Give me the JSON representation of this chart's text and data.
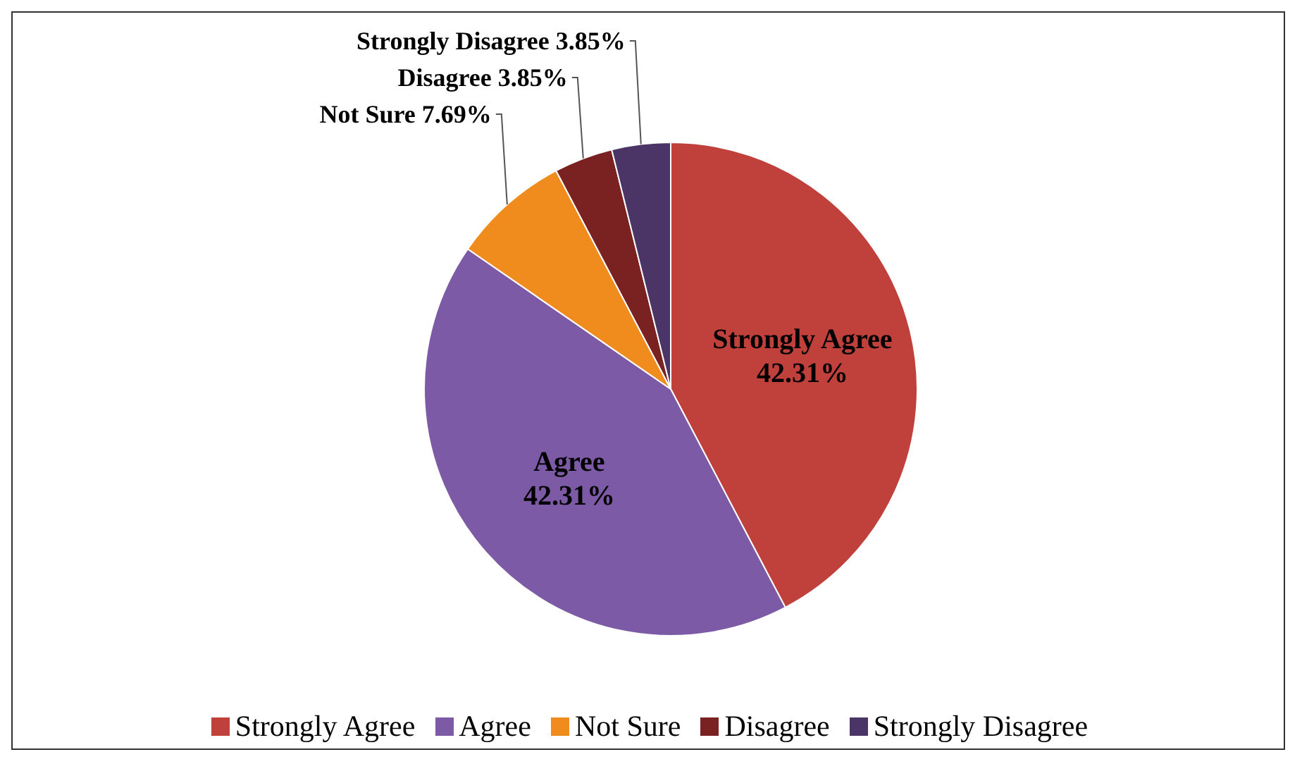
{
  "chart_data": {
    "type": "pie",
    "categories": [
      "Strongly Agree",
      "Agree",
      "Not Sure",
      "Disagree",
      "Strongly Disagree"
    ],
    "values": [
      42.31,
      42.31,
      7.69,
      3.85,
      3.85
    ],
    "value_labels": [
      "42.31%",
      "42.31%",
      "7.69%",
      "3.85%",
      "3.85%"
    ],
    "colors": [
      "#c0403c",
      "#7d5aa6",
      "#f08c1e",
      "#7a2222",
      "#4a3566"
    ],
    "legend": "bottom"
  }
}
